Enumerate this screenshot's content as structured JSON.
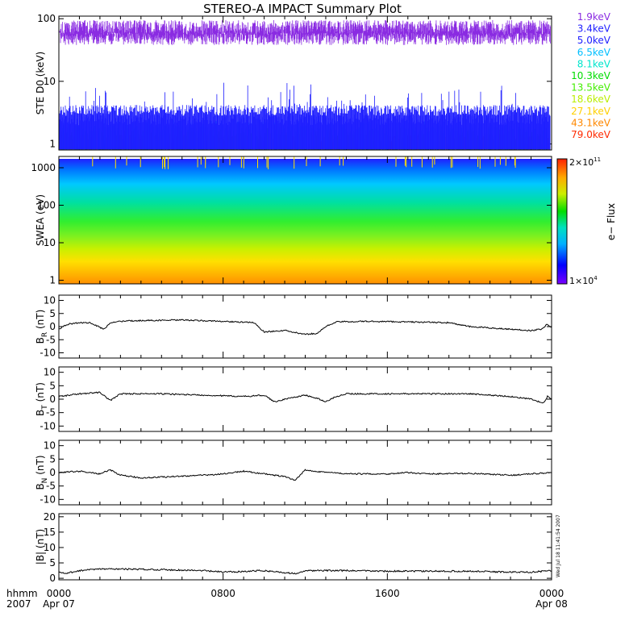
{
  "title": "STEREO-A IMPACT Summary Plot",
  "footer": {
    "row1_label": "hhmm",
    "row2_label": "2007",
    "date_start": "Apr 07",
    "date_end": "Apr 08",
    "stamp": "Wed Jul 18 11:41:54 2007"
  },
  "chart_data": [
    {
      "type": "line",
      "panel": "ste",
      "ylabel": "STE D0 (keV)",
      "yscale": "log",
      "ylim": [
        0.8,
        110
      ],
      "yticks": [
        "1",
        "10",
        "100"
      ],
      "ytick_values": [
        1,
        10,
        100
      ],
      "xlim_hours": [
        0,
        24
      ],
      "legend_placement": "right",
      "series": [
        {
          "name": "1.9keV",
          "color": "#8a2be2",
          "level": 70
        },
        {
          "name": "3.4keV",
          "color": "#1e1eff",
          "level": 2.8
        },
        {
          "name": "5.0keV",
          "color": "#1e1eff",
          "level": 2.0
        },
        {
          "name": "6.5keV",
          "color": "#00bfff",
          "level": 1.7
        },
        {
          "name": "8.1keV",
          "color": "#00e5cc",
          "level": 1.5
        },
        {
          "name": "10.3keV",
          "color": "#00dd00",
          "level": 1.3
        },
        {
          "name": "13.5keV",
          "color": "#44ee00",
          "level": 1.2
        },
        {
          "name": "18.6keV",
          "color": "#bbee00",
          "level": 1.1
        },
        {
          "name": "27.1keV",
          "color": "#ffd000",
          "level": 1.05
        },
        {
          "name": "43.1keV",
          "color": "#ff8800",
          "level": 1.0
        },
        {
          "name": "79.0keV",
          "color": "#ff2a00",
          "level": 1.0
        }
      ]
    },
    {
      "type": "heatmap",
      "panel": "swea",
      "ylabel": "SWEA (eV)",
      "yscale": "log",
      "ylim": [
        0.8,
        2000
      ],
      "yticks": [
        "1",
        "10",
        "100",
        "1000"
      ],
      "ytick_values": [
        1,
        10,
        100,
        1000
      ],
      "colorbar": {
        "label": "e− Flux",
        "max_label": "2×10",
        "max_exp": "11",
        "min_label": "1×10",
        "min_exp": "4"
      }
    },
    {
      "type": "line",
      "panel": "br",
      "ylabel": "B",
      "ylabel_sub": "R",
      "ylabel_unit": "(nT)",
      "ylim": [
        -12,
        12
      ],
      "yticks": [
        "10",
        "5",
        "0",
        "-5",
        "-10"
      ],
      "ytick_values": [
        10,
        5,
        0,
        -5,
        -10
      ],
      "x_hours": [
        0,
        0.2,
        0.5,
        1.0,
        1.5,
        2.2,
        2.5,
        3.0,
        4.0,
        6.0,
        8.0,
        9.5,
        10.0,
        11.0,
        12.0,
        12.6,
        13.0,
        13.5,
        15.0,
        17.0,
        19.0,
        20.0,
        21.0,
        22.0,
        23.0,
        23.5,
        23.8,
        24.0
      ],
      "values": [
        -1.0,
        0.0,
        1.0,
        1.5,
        1.5,
        -1.0,
        1.5,
        2.0,
        2.3,
        2.5,
        2.0,
        1.5,
        -2.0,
        -1.5,
        -3.0,
        -2.5,
        0.0,
        1.8,
        2.0,
        1.8,
        1.5,
        0.0,
        -0.5,
        -1.0,
        -1.5,
        -1.0,
        1.0,
        -0.5
      ]
    },
    {
      "type": "line",
      "panel": "bt",
      "ylabel": "B",
      "ylabel_sub": "T",
      "ylabel_unit": "(nT)",
      "ylim": [
        -12,
        12
      ],
      "yticks": [
        "10",
        "5",
        "0",
        "-5",
        "-10"
      ],
      "ytick_values": [
        10,
        5,
        0,
        -5,
        -10
      ],
      "x_hours": [
        0,
        0.5,
        1.0,
        2.0,
        2.5,
        3.0,
        5.0,
        7.0,
        9.0,
        10.0,
        10.5,
        11.0,
        12.0,
        12.7,
        13.0,
        13.5,
        14.0,
        16.0,
        18.0,
        20.0,
        21.0,
        22.0,
        23.0,
        23.6,
        23.8,
        24.0
      ],
      "values": [
        1.0,
        1.5,
        2.0,
        2.5,
        -0.5,
        2.0,
        2.0,
        1.5,
        1.0,
        1.5,
        -1.0,
        0.0,
        1.5,
        0.0,
        -1.0,
        1.0,
        2.0,
        2.0,
        2.0,
        2.0,
        1.5,
        1.0,
        0.0,
        -1.5,
        1.0,
        0.0
      ]
    },
    {
      "type": "line",
      "panel": "bn",
      "ylabel": "B",
      "ylabel_sub": "N",
      "ylabel_unit": "(nT)",
      "ylim": [
        -12,
        12
      ],
      "yticks": [
        "10",
        "5",
        "0",
        "-5",
        "-10"
      ],
      "ytick_values": [
        10,
        5,
        0,
        -5,
        -10
      ],
      "x_hours": [
        0,
        1.0,
        2.0,
        2.5,
        3.0,
        4.0,
        5.5,
        7.0,
        8.0,
        9.0,
        10.0,
        11.0,
        11.5,
        12.0,
        12.5,
        14.0,
        16.0,
        17.0,
        18.0,
        20.0,
        22.0,
        23.0,
        24.0
      ],
      "values": [
        0.0,
        0.5,
        -0.5,
        1.0,
        -1.0,
        -2.0,
        -1.5,
        -1.0,
        -0.5,
        0.5,
        -0.5,
        -1.5,
        -3.0,
        1.0,
        0.5,
        -0.5,
        -0.5,
        0.0,
        -0.5,
        -0.3,
        -1.0,
        -0.5,
        0.0
      ]
    },
    {
      "type": "line",
      "panel": "bmag",
      "ylabel": "|B| (nT)",
      "ylim": [
        -0.5,
        21
      ],
      "yticks": [
        "20",
        "15",
        "10",
        "5",
        "0"
      ],
      "ytick_values": [
        20,
        15,
        10,
        5,
        0
      ],
      "x_hours": [
        0,
        0.3,
        1.0,
        2.0,
        3.0,
        5.0,
        7.0,
        8.0,
        10.0,
        11.5,
        12.0,
        14.0,
        16.0,
        18.0,
        20.0,
        22.0,
        23.0,
        24.0
      ],
      "values": [
        2.0,
        1.5,
        2.5,
        3.0,
        3.0,
        2.8,
        2.5,
        2.0,
        2.5,
        1.5,
        2.5,
        2.5,
        2.3,
        2.3,
        2.3,
        2.0,
        2.0,
        2.5
      ],
      "xaxis": {
        "ticks": [
          "0000",
          "0800",
          "1600",
          "0000"
        ],
        "tick_hours": [
          0,
          8,
          16,
          24
        ]
      }
    }
  ]
}
